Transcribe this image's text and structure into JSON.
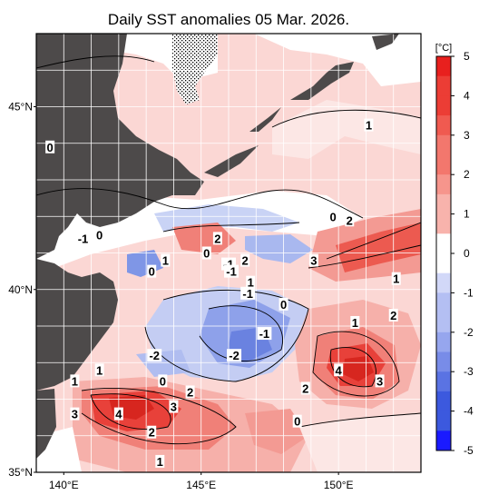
{
  "title": "Daily SST anomalies 05 Mar. 2026.",
  "map": {
    "lat_labels": [
      "45°N",
      "40°N",
      "35°N"
    ],
    "lon_labels": [
      "140°E",
      "145°E",
      "150°E"
    ],
    "lat_values": [
      45,
      40,
      35
    ],
    "lon_values": [
      140,
      145,
      150
    ],
    "lat_range": [
      35,
      47
    ],
    "lon_range": [
      139,
      153
    ]
  },
  "colorbar": {
    "unit": "[°C]",
    "ticks": [
      "5",
      "4",
      "3",
      "2",
      "1",
      "0",
      "-1",
      "-2",
      "-3",
      "-4",
      "-5"
    ],
    "max_color": "#e8201e",
    "min_color": "#1a1aff",
    "zero_color": "#ffffff"
  },
  "contour_labels": [
    {
      "text": "1",
      "lon": 151.1,
      "lat": 44.5
    },
    {
      "text": "0",
      "lon": 139.5,
      "lat": 43.9
    },
    {
      "text": "0",
      "lon": 149.8,
      "lat": 42.0
    },
    {
      "text": "2",
      "lon": 150.4,
      "lat": 41.9
    },
    {
      "text": "-1",
      "lon": 140.7,
      "lat": 41.4
    },
    {
      "text": "0",
      "lon": 141.3,
      "lat": 41.5
    },
    {
      "text": "2",
      "lon": 145.6,
      "lat": 41.4
    },
    {
      "text": "1",
      "lon": 143.7,
      "lat": 40.8
    },
    {
      "text": "0",
      "lon": 143.2,
      "lat": 40.5
    },
    {
      "text": "0",
      "lon": 145.2,
      "lat": 41.0
    },
    {
      "text": "-1",
      "lon": 146.0,
      "lat": 40.7
    },
    {
      "text": "2",
      "lon": 146.6,
      "lat": 40.8
    },
    {
      "text": "-1",
      "lon": 146.1,
      "lat": 40.5
    },
    {
      "text": "3",
      "lon": 149.1,
      "lat": 40.8
    },
    {
      "text": "1",
      "lon": 146.8,
      "lat": 40.2
    },
    {
      "text": "1",
      "lon": 152.1,
      "lat": 40.3
    },
    {
      "text": "-1",
      "lon": 146.7,
      "lat": 39.9
    },
    {
      "text": "0",
      "lon": 148.0,
      "lat": 39.6
    },
    {
      "text": "2",
      "lon": 152.0,
      "lat": 39.3
    },
    {
      "text": "1",
      "lon": 150.6,
      "lat": 39.1
    },
    {
      "text": "-1",
      "lon": 147.3,
      "lat": 38.8
    },
    {
      "text": "-2",
      "lon": 143.3,
      "lat": 38.2
    },
    {
      "text": "-2",
      "lon": 146.2,
      "lat": 38.2
    },
    {
      "text": "1",
      "lon": 141.3,
      "lat": 37.8
    },
    {
      "text": "4",
      "lon": 150.0,
      "lat": 37.8
    },
    {
      "text": "1",
      "lon": 140.4,
      "lat": 37.5
    },
    {
      "text": "0",
      "lon": 143.6,
      "lat": 37.5
    },
    {
      "text": "3",
      "lon": 151.5,
      "lat": 37.5
    },
    {
      "text": "2",
      "lon": 148.8,
      "lat": 37.3
    },
    {
      "text": "2",
      "lon": 144.6,
      "lat": 37.2
    },
    {
      "text": "3",
      "lon": 144.0,
      "lat": 36.8
    },
    {
      "text": "3",
      "lon": 140.4,
      "lat": 36.6
    },
    {
      "text": "4",
      "lon": 142.0,
      "lat": 36.6
    },
    {
      "text": "0",
      "lon": 148.5,
      "lat": 36.4
    },
    {
      "text": "2",
      "lon": 143.2,
      "lat": 36.1
    },
    {
      "text": "1",
      "lon": 143.5,
      "lat": 35.3
    }
  ]
}
